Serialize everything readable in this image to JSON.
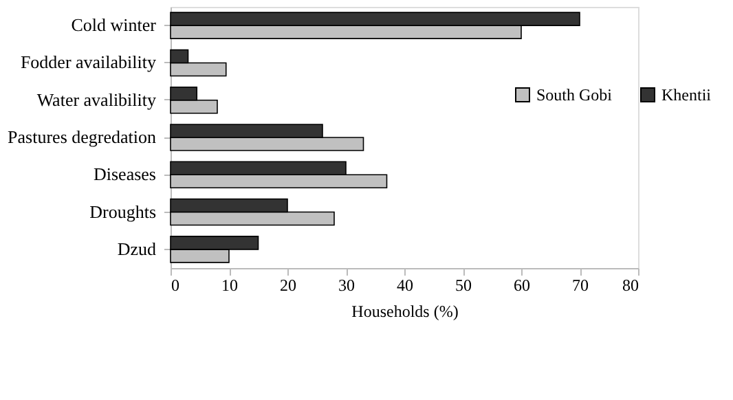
{
  "chart_data": {
    "type": "bar",
    "orientation": "horizontal",
    "xlabel": "Households (%)",
    "categories": [
      "Cold winter",
      "Fodder availability",
      "Water avalibility",
      "Pastures degredation",
      "Diseases",
      "Droughts",
      "Dzud"
    ],
    "series": [
      {
        "name": "South Gobi",
        "color": "#c0c0c0",
        "values": [
          60,
          9.5,
          8,
          33,
          37,
          28,
          10
        ]
      },
      {
        "name": "Khentii",
        "color": "#333333",
        "values": [
          70,
          3,
          4.5,
          26,
          30,
          20,
          15
        ]
      }
    ],
    "xlim": [
      0,
      80
    ],
    "xticks": [
      0,
      10,
      20,
      30,
      40,
      50,
      60,
      70,
      80
    ],
    "grid": false,
    "legend": "right"
  }
}
